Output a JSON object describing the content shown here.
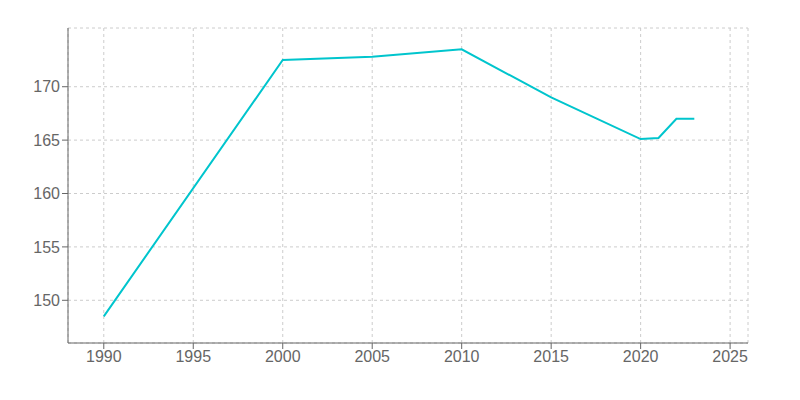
{
  "chart_data": {
    "type": "line",
    "x": [
      1990,
      2000,
      2005,
      2010,
      2015,
      2020,
      2021,
      2022,
      2023
    ],
    "values": [
      148.5,
      172.5,
      172.8,
      173.5,
      169.0,
      165.1,
      165.2,
      167.0,
      167.0
    ],
    "color": "#00C5CD",
    "xlim": [
      1988,
      2026
    ],
    "xticks": [
      1990,
      1995,
      2000,
      2005,
      2010,
      2015,
      2020,
      2025
    ],
    "ylim": [
      146,
      175.5
    ],
    "yticks": [
      150,
      155,
      160,
      165,
      170
    ],
    "grid": true
  }
}
